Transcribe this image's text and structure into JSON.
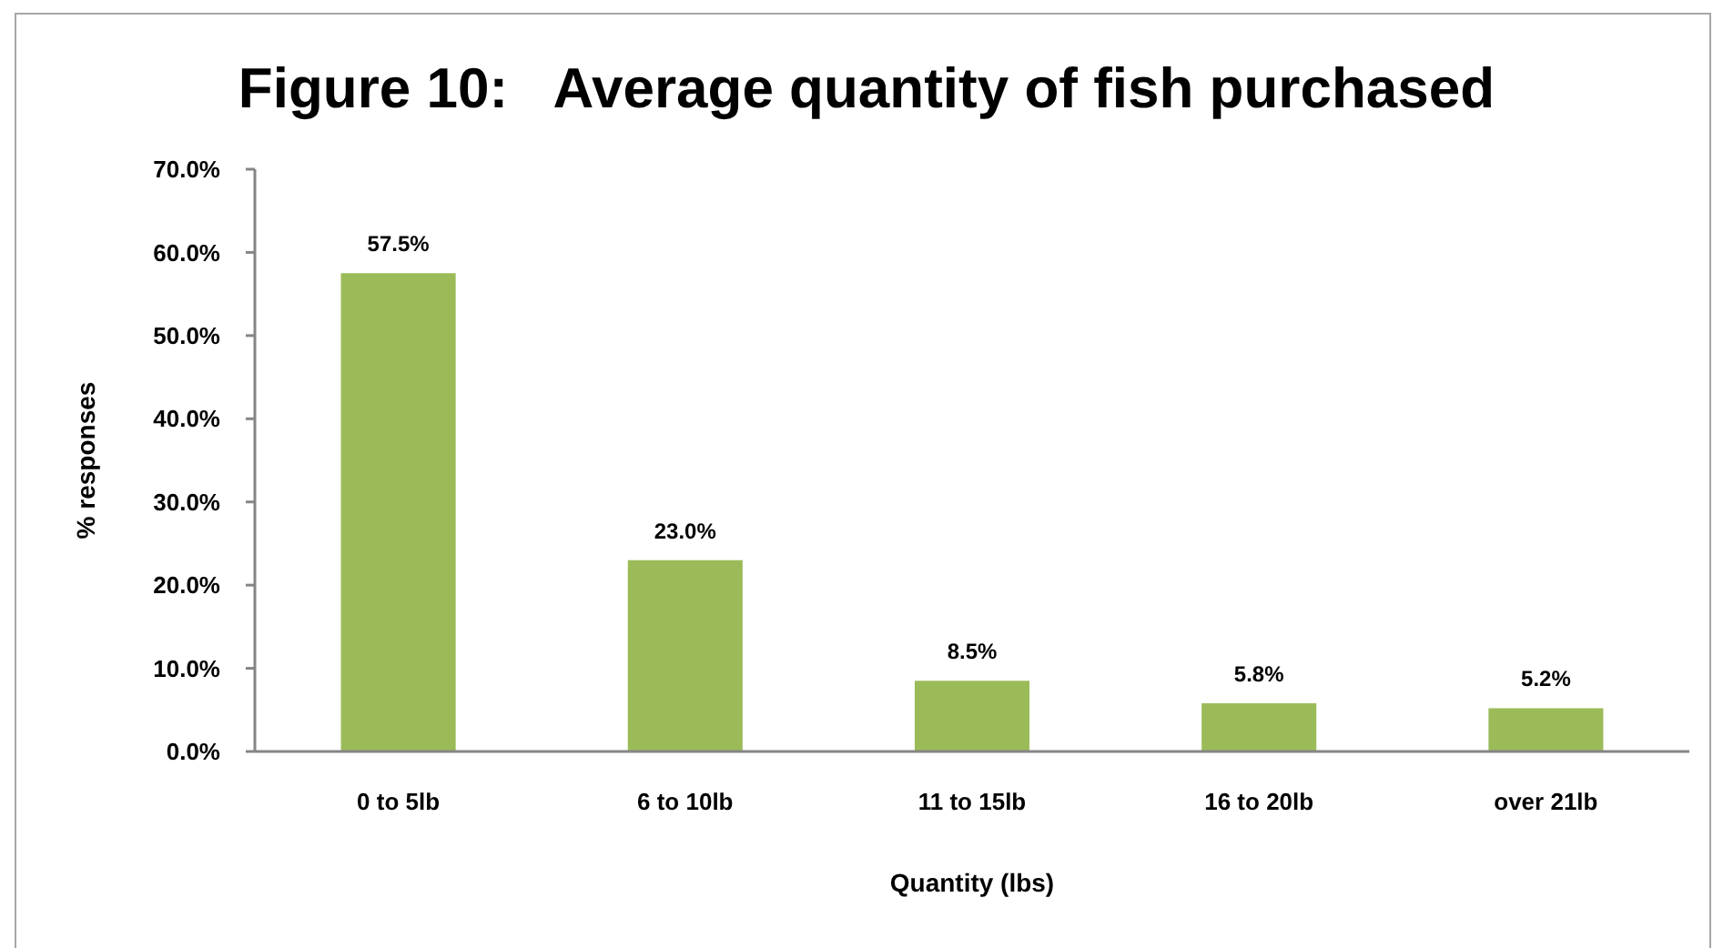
{
  "chart_data": {
    "type": "bar",
    "title": "Figure 10:   Average quantity of fish purchased",
    "xlabel": "Quantity (lbs)",
    "ylabel": "% responses",
    "categories": [
      "0 to 5lb",
      "6 to 10lb",
      "11 to 15lb",
      "16 to 20lb",
      "over 21lb"
    ],
    "values": [
      57.5,
      23.0,
      8.5,
      5.8,
      5.2
    ],
    "color": "#9bbb59",
    "value_labels": [
      "57.5%",
      "23.0%",
      "8.5%",
      "5.8%",
      "5.2%"
    ],
    "ylim": [
      0,
      70
    ],
    "yticks": [
      {
        "value": 0,
        "label": "0.0%"
      },
      {
        "value": 10,
        "label": "10.0%"
      },
      {
        "value": 20,
        "label": "20.0%"
      },
      {
        "value": 30,
        "label": "30.0%"
      },
      {
        "value": 40,
        "label": "40.0%"
      },
      {
        "value": 50,
        "label": "50.0%"
      },
      {
        "value": 60,
        "label": "60.0%"
      },
      {
        "value": 70,
        "label": "70.0%"
      }
    ]
  }
}
